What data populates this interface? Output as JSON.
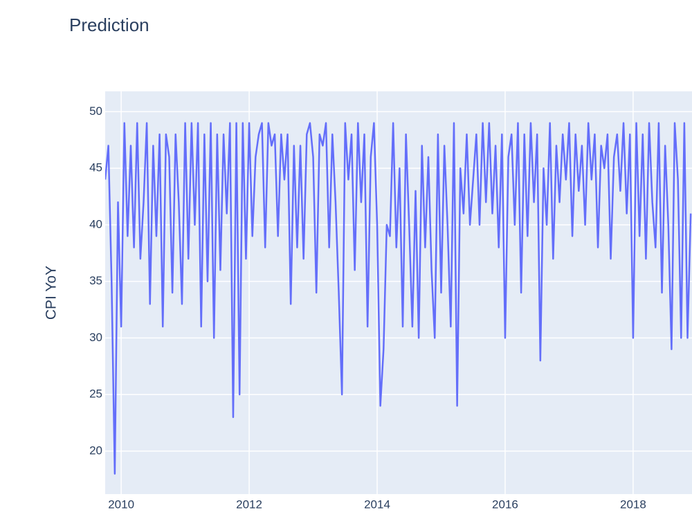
{
  "chart_data": {
    "type": "line",
    "title": "Prediction",
    "y_label": "CPI YoY",
    "xlim": [
      2009.75,
      2018.92
    ],
    "xticks": [
      2010,
      2012,
      2014,
      2016,
      2018
    ],
    "ylim": [
      16.2,
      51.8
    ],
    "yticks": [
      20,
      25,
      30,
      35,
      40,
      45,
      50
    ],
    "grid": true,
    "x": [
      2009.75,
      2009.8,
      2009.85,
      2009.9,
      2009.95,
      2010,
      2010.05,
      2010.1,
      2010.15,
      2010.2,
      2010.25,
      2010.3,
      2010.35,
      2010.4,
      2010.45,
      2010.5,
      2010.55,
      2010.6,
      2010.65,
      2010.7,
      2010.75,
      2010.8,
      2010.85,
      2010.9,
      2010.95,
      2011,
      2011.05,
      2011.1,
      2011.15,
      2011.2,
      2011.25,
      2011.3,
      2011.35,
      2011.4,
      2011.45,
      2011.5,
      2011.55,
      2011.6,
      2011.65,
      2011.7,
      2011.75,
      2011.8,
      2011.85,
      2011.9,
      2011.95,
      2012,
      2012.05,
      2012.1,
      2012.15,
      2012.2,
      2012.25,
      2012.3,
      2012.35,
      2012.4,
      2012.45,
      2012.5,
      2012.55,
      2012.6,
      2012.65,
      2012.7,
      2012.75,
      2012.8,
      2012.85,
      2012.9,
      2012.95,
      2013,
      2013.05,
      2013.1,
      2013.15,
      2013.2,
      2013.25,
      2013.3,
      2013.35,
      2013.4,
      2013.45,
      2013.5,
      2013.55,
      2013.6,
      2013.65,
      2013.7,
      2013.75,
      2013.8,
      2013.85,
      2013.9,
      2013.95,
      2014,
      2014.05,
      2014.1,
      2014.15,
      2014.2,
      2014.25,
      2014.3,
      2014.35,
      2014.4,
      2014.45,
      2014.5,
      2014.55,
      2014.6,
      2014.65,
      2014.7,
      2014.75,
      2014.8,
      2014.85,
      2014.9,
      2014.95,
      2015,
      2015.05,
      2015.1,
      2015.15,
      2015.2,
      2015.25,
      2015.3,
      2015.35,
      2015.4,
      2015.45,
      2015.5,
      2015.55,
      2015.6,
      2015.65,
      2015.7,
      2015.75,
      2015.8,
      2015.85,
      2015.9,
      2015.95,
      2016,
      2016.05,
      2016.1,
      2016.15,
      2016.2,
      2016.25,
      2016.3,
      2016.35,
      2016.4,
      2016.45,
      2016.5,
      2016.55,
      2016.6,
      2016.65,
      2016.7,
      2016.75,
      2016.8,
      2016.85,
      2016.9,
      2016.95,
      2017,
      2017.05,
      2017.1,
      2017.15,
      2017.2,
      2017.25,
      2017.3,
      2017.35,
      2017.4,
      2017.45,
      2017.5,
      2017.55,
      2017.6,
      2017.65,
      2017.7,
      2017.75,
      2017.8,
      2017.85,
      2017.9,
      2017.95,
      2018,
      2018.05,
      2018.1,
      2018.15,
      2018.2,
      2018.25,
      2018.3,
      2018.35,
      2018.4,
      2018.45,
      2018.5,
      2018.55,
      2018.6,
      2018.65,
      2018.7,
      2018.75,
      2018.8,
      2018.85,
      2018.9
    ],
    "series": [
      {
        "color": "#636efa",
        "values": [
          44,
          47,
          35,
          18,
          42,
          31,
          49,
          39,
          47,
          38,
          49,
          37,
          42,
          49,
          33,
          47,
          39,
          48,
          31,
          48,
          46,
          34,
          48,
          42,
          33,
          49,
          37,
          49,
          40,
          49,
          31,
          48,
          35,
          49,
          30,
          48,
          36,
          48,
          41,
          49,
          23,
          49,
          25,
          49,
          37,
          49,
          39,
          46,
          48,
          49,
          38,
          49,
          47,
          48,
          39,
          48,
          44,
          48,
          33,
          47,
          38,
          47,
          37,
          48,
          49,
          46,
          34,
          48,
          47,
          49,
          38,
          48,
          42,
          34,
          25,
          49,
          44,
          48,
          36,
          49,
          42,
          48,
          31,
          46,
          49,
          40,
          24,
          29,
          40,
          39,
          49,
          38,
          45,
          31,
          48,
          40,
          31,
          43,
          30,
          47,
          38,
          46,
          36,
          30,
          48,
          34,
          47,
          40,
          31,
          49,
          24,
          45,
          41,
          48,
          40,
          44,
          48,
          40,
          49,
          42,
          49,
          41,
          47,
          38,
          48,
          30,
          46,
          48,
          40,
          49,
          34,
          48,
          39,
          49,
          42,
          48,
          28,
          45,
          40,
          49,
          37,
          47,
          42,
          48,
          44,
          49,
          39,
          48,
          43,
          47,
          40,
          49,
          44,
          48,
          38,
          47,
          45,
          48,
          37,
          46,
          48,
          43,
          49,
          41,
          48,
          30,
          49,
          39,
          48,
          37,
          49,
          42,
          38,
          49,
          34,
          47,
          40,
          29,
          49,
          44,
          30,
          49,
          30,
          41
        ]
      }
    ]
  }
}
